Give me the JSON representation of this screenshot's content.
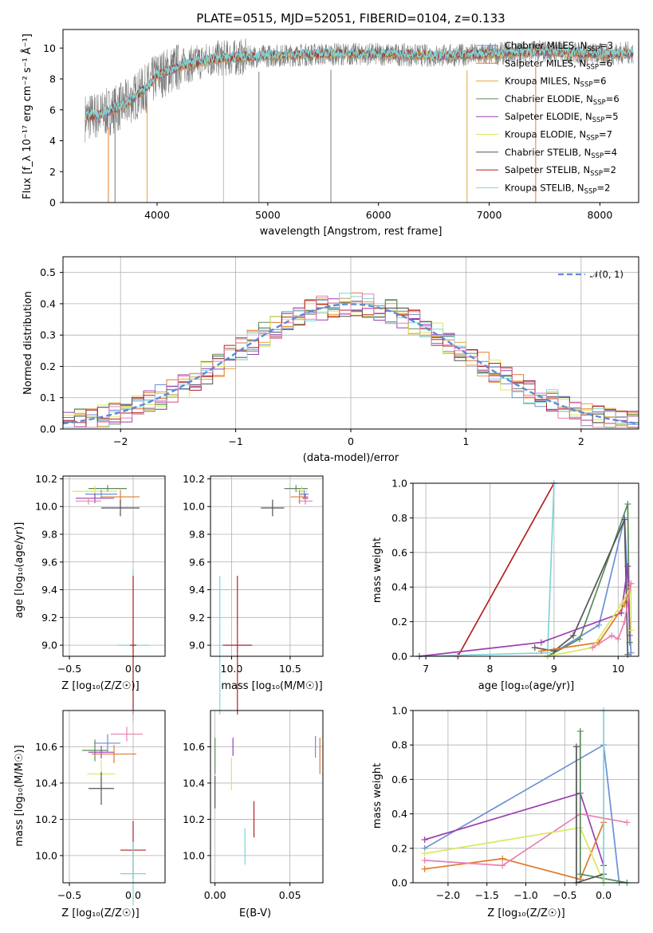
{
  "colors": {
    "chabrier_miles": "#6b8fd6",
    "salpeter_miles": "#e07a2e",
    "kroupa_miles": "#e8a33a",
    "chabrier_elodie": "#5a8a5a",
    "salpeter_elodie": "#9c3fb0",
    "kroupa_elodie": "#d9e85a",
    "chabrier_stelib": "#555555",
    "salpeter_stelib": "#b22222",
    "kroupa_stelib": "#7ed4d8",
    "pink": "#e880b0",
    "data_gray": "#808080",
    "gauss": "#5b8ad8",
    "grid": "#b0b0b0"
  },
  "spectrum": {
    "title": "PLATE=0515, MJD=52051, FIBERID=0104, z=0.133",
    "xlabel": "wavelength [Angstrom, rest frame]",
    "ylabel": "Flux [f_λ 10⁻¹⁷ erg cm⁻² s⁻¹ Å⁻¹]",
    "xticks": [
      "4000",
      "5000",
      "6000",
      "7000",
      "8000"
    ],
    "yticks": [
      "0",
      "2",
      "4",
      "6",
      "8",
      "10"
    ],
    "legend": [
      "Chabrier MILES, N_SSP=3",
      "Salpeter MILES, N_SSP=6",
      "Kroupa MILES, N_SSP=6",
      "Chabrier ELODIE, N_SSP=6",
      "Salpeter ELODIE, N_SSP=5",
      "Kroupa ELODIE, N_SSP=7",
      "Chabrier STELIB, N_SSP=4",
      "Salpeter STELIB, N_SSP=2",
      "Kroupa STELIB, N_SSP=2"
    ]
  },
  "histogram": {
    "xlabel": "(data-model)/error",
    "ylabel": "Normed distribution",
    "legend": "𝒩(0, 1)",
    "xticks": [
      "−2",
      "−1",
      "0",
      "1",
      "2"
    ],
    "yticks": [
      "0.0",
      "0.1",
      "0.2",
      "0.3",
      "0.4",
      "0.5"
    ]
  },
  "panels": {
    "age_vs_z": {
      "xlabel": "Z [log₁₀(Z/Z☉)]",
      "ylabel": "age  [log₁₀(age/yr)]"
    },
    "age_vs_mass": {
      "xlabel": "mass [log₁₀(M/M☉)]"
    },
    "weight_vs_age": {
      "xlabel": "age  [log₁₀(age/yr)]",
      "ylabel": "mass weight"
    },
    "mass_vs_z": {
      "xlabel": "Z [log₁₀(Z/Z☉)]",
      "ylabel": "mass [log₁₀(M/M☉)]"
    },
    "mass_vs_ebv": {
      "xlabel": "E(B-V)"
    },
    "weight_vs_z": {
      "xlabel": "Z [log₁₀(Z/Z☉)]",
      "ylabel": "mass weight"
    }
  },
  "chart_data": [
    {
      "type": "line",
      "title": "PLATE=0515, MJD=52051, FIBERID=0104, z=0.133",
      "x_range": [
        3150,
        8350
      ],
      "ylim": [
        0,
        11.2
      ],
      "note_series": "observed spectrum (gray) plus 9 model fits, continuum level shown",
      "continuum": {
        "x": [
          3350,
          3500,
          3700,
          3900,
          4000,
          4200,
          4500,
          5000,
          5500,
          6000,
          6500,
          7000,
          7500,
          8000,
          8300
        ],
        "y": [
          5.5,
          5.7,
          6.3,
          7.4,
          8.2,
          8.8,
          9.3,
          9.5,
          9.6,
          9.6,
          9.5,
          9.6,
          9.8,
          9.6,
          9.7
        ]
      }
    },
    {
      "type": "bar",
      "xlim": [
        -2.5,
        2.5
      ],
      "ylim": [
        0,
        0.55
      ],
      "bin_width": 0.1,
      "gaussian": "N(0,1)"
    },
    {
      "type": "scatter",
      "name": "age vs Z",
      "xlim": [
        -0.55,
        0.25
      ],
      "ylim": [
        8.92,
        10.22
      ],
      "points": [
        {
          "x": 0.0,
          "y": 9.0,
          "xerr": 0.25,
          "yerr": 1.1,
          "c": "kroupa_stelib"
        },
        {
          "x": 0.0,
          "y": 9.0,
          "xerr": 0.05,
          "yerr": 1.0,
          "c": "salpeter_stelib"
        },
        {
          "x": -0.2,
          "y": 10.13,
          "xerr": 0.3,
          "yerr": 0.05,
          "c": "chabrier_elodie"
        },
        {
          "x": -0.3,
          "y": 10.11,
          "xerr": 0.35,
          "yerr": 0.08,
          "c": "kroupa_elodie"
        },
        {
          "x": -0.25,
          "y": 10.09,
          "xerr": 0.25,
          "yerr": 0.06,
          "c": "chabrier_miles"
        },
        {
          "x": -0.1,
          "y": 10.07,
          "xerr": 0.3,
          "yerr": 0.1,
          "c": "salpeter_miles"
        },
        {
          "x": -0.3,
          "y": 10.06,
          "xerr": 0.3,
          "yerr": 0.07,
          "c": "salpeter_elodie"
        },
        {
          "x": -0.35,
          "y": 10.04,
          "xerr": 0.2,
          "yerr": 0.05,
          "c": "pink"
        },
        {
          "x": -0.1,
          "y": 9.99,
          "xerr": 0.3,
          "yerr": 0.12,
          "c": "chabrier_stelib"
        }
      ]
    },
    {
      "type": "scatter",
      "name": "age vs mass",
      "xlim": [
        9.82,
        10.78
      ],
      "ylim": [
        8.92,
        10.22
      ],
      "points": [
        {
          "x": 9.9,
          "y": 9.0,
          "xerr": 0.02,
          "yerr": 1.0,
          "c": "kroupa_stelib"
        },
        {
          "x": 10.05,
          "y": 9.0,
          "xerr": 0.25,
          "yerr": 1.0,
          "c": "salpeter_stelib"
        },
        {
          "x": 10.55,
          "y": 10.13,
          "xerr": 0.2,
          "yerr": 0.05,
          "c": "chabrier_elodie"
        },
        {
          "x": 10.6,
          "y": 10.11,
          "xerr": 0.1,
          "yerr": 0.08,
          "c": "kroupa_elodie"
        },
        {
          "x": 10.62,
          "y": 10.09,
          "xerr": 0.08,
          "yerr": 0.06,
          "c": "chabrier_miles"
        },
        {
          "x": 10.58,
          "y": 10.07,
          "xerr": 0.15,
          "yerr": 0.1,
          "c": "salpeter_miles"
        },
        {
          "x": 10.63,
          "y": 10.06,
          "xerr": 0.05,
          "yerr": 0.07,
          "c": "salpeter_elodie"
        },
        {
          "x": 10.63,
          "y": 10.04,
          "xerr": 0.12,
          "yerr": 0.05,
          "c": "pink"
        },
        {
          "x": 10.35,
          "y": 9.99,
          "xerr": 0.2,
          "yerr": 0.12,
          "c": "chabrier_stelib"
        }
      ]
    },
    {
      "type": "line",
      "name": "mass weight vs age",
      "xlim": [
        6.8,
        10.32
      ],
      "ylim": [
        0,
        1
      ],
      "series": [
        {
          "c": "salpeter_stelib",
          "x": [
            7.5,
            9.0
          ],
          "y": [
            0.0,
            1.0
          ]
        },
        {
          "c": "kroupa_stelib",
          "x": [
            6.9,
            8.9,
            9.0
          ],
          "y": [
            0.0,
            0.02,
            1.0
          ]
        },
        {
          "c": "chabrier_miles",
          "x": [
            8.9,
            9.7,
            10.1,
            10.2
          ],
          "y": [
            0.0,
            0.18,
            0.8,
            0.02
          ]
        },
        {
          "c": "chabrier_elodie",
          "x": [
            8.9,
            9.4,
            10.15,
            10.18
          ],
          "y": [
            0.0,
            0.1,
            0.88,
            0.08
          ]
        },
        {
          "c": "chabrier_stelib",
          "x": [
            8.7,
            9.0,
            9.3,
            10.1,
            10.15
          ],
          "y": [
            0.05,
            0.03,
            0.12,
            0.79,
            0.01
          ]
        },
        {
          "c": "salpeter_elodie",
          "x": [
            6.9,
            8.8,
            10.05,
            10.15,
            10.18
          ],
          "y": [
            0.0,
            0.08,
            0.25,
            0.52,
            0.12
          ]
        },
        {
          "c": "salpeter_miles",
          "x": [
            8.8,
            9.7,
            10.1,
            10.2
          ],
          "y": [
            0.03,
            0.08,
            0.3,
            0.42
          ]
        },
        {
          "c": "kroupa_elodie",
          "x": [
            8.9,
            9.6,
            10.05,
            10.2,
            10.2
          ],
          "y": [
            0.0,
            0.05,
            0.3,
            0.4,
            0.15
          ]
        },
        {
          "c": "pink",
          "x": [
            9.6,
            9.9,
            10.0,
            10.1,
            10.2
          ],
          "y": [
            0.05,
            0.12,
            0.1,
            0.2,
            0.42
          ]
        }
      ]
    },
    {
      "type": "scatter",
      "name": "mass vs Z",
      "xlim": [
        -0.55,
        0.25
      ],
      "ylim": [
        9.85,
        10.8
      ],
      "points": [
        {
          "x": -0.05,
          "y": 10.67,
          "xerr": 0.25,
          "yerr": 0.08,
          "c": "pink"
        },
        {
          "x": -0.2,
          "y": 10.62,
          "xerr": 0.2,
          "yerr": 0.1,
          "c": "chabrier_miles"
        },
        {
          "x": -0.3,
          "y": 10.58,
          "xerr": 0.2,
          "yerr": 0.12,
          "c": "chabrier_elodie"
        },
        {
          "x": -0.25,
          "y": 10.57,
          "xerr": 0.2,
          "yerr": 0.07,
          "c": "salpeter_elodie"
        },
        {
          "x": -0.15,
          "y": 10.56,
          "xerr": 0.35,
          "yerr": 0.1,
          "c": "salpeter_miles"
        },
        {
          "x": -0.25,
          "y": 10.45,
          "xerr": 0.22,
          "yerr": 0.15,
          "c": "kroupa_elodie"
        },
        {
          "x": -0.25,
          "y": 10.37,
          "xerr": 0.2,
          "yerr": 0.18,
          "c": "chabrier_stelib"
        },
        {
          "x": 0.0,
          "y": 10.03,
          "xerr": 0.2,
          "yerr": 0.32,
          "c": "salpeter_stelib"
        },
        {
          "x": 0.0,
          "y": 9.9,
          "xerr": 0.2,
          "yerr": 0.35,
          "c": "kroupa_stelib"
        }
      ]
    },
    {
      "type": "scatter",
      "name": "mass vs E(B-V)",
      "xlim": [
        -0.003,
        0.072
      ],
      "ylim": [
        9.85,
        10.8
      ],
      "points": [
        {
          "x": 0.0,
          "y": 10.55,
          "yerr": 0.2,
          "c": "chabrier_elodie"
        },
        {
          "x": 0.0,
          "y": 10.35,
          "yerr": 0.18,
          "c": "chabrier_stelib"
        },
        {
          "x": 0.012,
          "y": 10.6,
          "yerr": 0.1,
          "c": "salpeter_elodie"
        },
        {
          "x": 0.011,
          "y": 10.45,
          "yerr": 0.18,
          "c": "kroupa_elodie"
        },
        {
          "x": 0.02,
          "y": 10.05,
          "yerr": 0.2,
          "c": "kroupa_stelib"
        },
        {
          "x": 0.026,
          "y": 10.2,
          "yerr": 0.2,
          "c": "salpeter_stelib"
        },
        {
          "x": 0.067,
          "y": 10.6,
          "yerr": 0.12,
          "c": "chabrier_miles"
        },
        {
          "x": 0.07,
          "y": 10.55,
          "yerr": 0.2,
          "c": "salpeter_miles"
        }
      ]
    },
    {
      "type": "line",
      "name": "mass weight vs Z",
      "xlim": [
        -2.45,
        0.45
      ],
      "ylim": [
        0,
        1
      ],
      "series": [
        {
          "c": "chabrier_miles",
          "x": [
            -2.3,
            0.0,
            0.2
          ],
          "y": [
            0.2,
            0.8,
            0.0
          ]
        },
        {
          "c": "salpeter_elodie",
          "x": [
            -2.3,
            -0.3,
            0.0
          ],
          "y": [
            0.25,
            0.52,
            0.1
          ]
        },
        {
          "c": "salpeter_miles",
          "x": [
            -2.3,
            -1.3,
            -0.3,
            0.0
          ],
          "y": [
            0.08,
            0.14,
            0.02,
            0.35
          ]
        },
        {
          "c": "pink",
          "x": [
            -2.3,
            -1.3,
            -0.3,
            0.3
          ],
          "y": [
            0.13,
            0.1,
            0.4,
            0.35
          ]
        },
        {
          "c": "kroupa_elodie",
          "x": [
            -2.3,
            -0.3,
            0.0
          ],
          "y": [
            0.17,
            0.32,
            0.0
          ]
        },
        {
          "c": "chabrier_elodie",
          "x": [
            -0.3,
            -0.3,
            0.3
          ],
          "y": [
            0.88,
            0.05,
            0.0
          ]
        },
        {
          "c": "chabrier_stelib",
          "x": [
            -0.35,
            -0.35,
            0.0
          ],
          "y": [
            0.79,
            0.0,
            0.05
          ]
        },
        {
          "c": "kroupa_stelib",
          "x": [
            0.0,
            0.0
          ],
          "y": [
            1.0,
            0.0
          ]
        }
      ]
    }
  ]
}
